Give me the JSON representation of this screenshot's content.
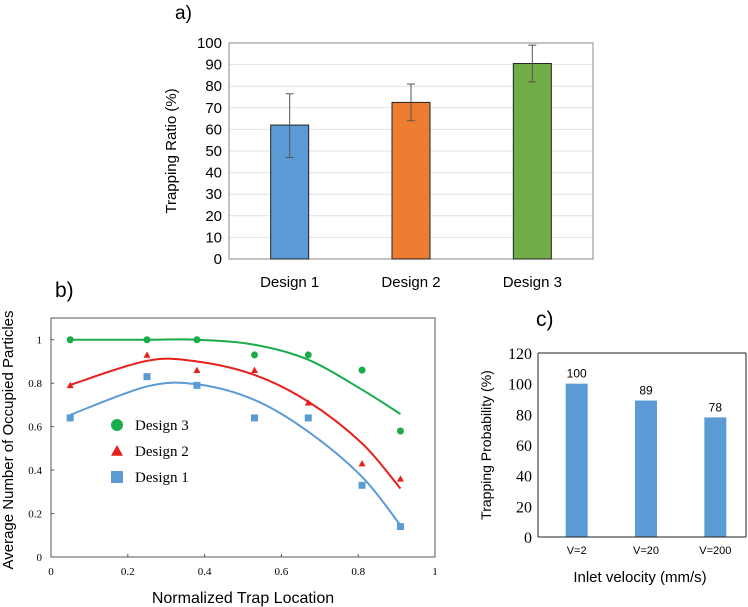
{
  "chart_data": [
    {
      "panel": "a)",
      "type": "bar",
      "categories": [
        "Design 1",
        "Design 2",
        "Design 3"
      ],
      "values": [
        62,
        72.5,
        90.5
      ],
      "error_low": [
        47,
        64,
        82
      ],
      "error_high": [
        76.5,
        81,
        99
      ],
      "colors": [
        "#5b9bd5",
        "#ed7d31",
        "#70ad47"
      ],
      "xlabel": "",
      "ylabel": "Trapping Ratio (%)",
      "ylim": [
        0,
        100
      ],
      "yticks": [
        0,
        10,
        20,
        30,
        40,
        50,
        60,
        70,
        80,
        90,
        100
      ],
      "grid": true
    },
    {
      "panel": "b)",
      "type": "scatter",
      "xlabel": "Normalized Trap Location",
      "ylabel": "Average Number of Occupied Particles",
      "xlim": [
        0,
        1
      ],
      "ylim": [
        0,
        1.1
      ],
      "xticks": [
        "0",
        "0.2",
        "0.4",
        "0.6",
        "0.8",
        "1"
      ],
      "yticks": [
        "0",
        "0.2",
        "0.4",
        "0.6",
        "0.8",
        "1"
      ],
      "legend_position": "center-left",
      "grid": false,
      "x": [
        0.05,
        0.25,
        0.38,
        0.53,
        0.67,
        0.81,
        0.91
      ],
      "series": [
        {
          "name": "Design 3",
          "marker": "circle",
          "color": "#1aab4b",
          "values": [
            1.0,
            1.0,
            1.0,
            0.93,
            0.93,
            0.86,
            0.58
          ],
          "trend": [
            1.0,
            1.0,
            1.0,
            0.977,
            0.908,
            0.77,
            0.658
          ]
        },
        {
          "name": "Design 2",
          "marker": "triangle",
          "color": "#e8201c",
          "values": [
            0.79,
            0.93,
            0.86,
            0.86,
            0.71,
            0.43,
            0.36
          ],
          "trend": [
            0.792,
            0.903,
            0.9,
            0.838,
            0.715,
            0.523,
            0.315
          ]
        },
        {
          "name": "Design 1",
          "marker": "square",
          "color": "#5b9bd5",
          "values": [
            0.64,
            0.83,
            0.79,
            0.64,
            0.64,
            0.33,
            0.14
          ],
          "trend": [
            0.654,
            0.785,
            0.795,
            0.723,
            0.577,
            0.369,
            0.146
          ]
        }
      ]
    },
    {
      "panel": "c)",
      "type": "bar",
      "categories": [
        "V=2",
        "V=20",
        "V=200"
      ],
      "values": [
        100,
        89,
        78
      ],
      "data_labels": [
        "100",
        "89",
        "78"
      ],
      "color": "#5b9bd5",
      "xlabel": "Inlet velocity (mm/s)",
      "ylabel": "Trapping Probability (%)",
      "ylim": [
        0,
        120
      ],
      "yticks": [
        0,
        20,
        40,
        60,
        80,
        100,
        120
      ],
      "grid": false
    }
  ]
}
